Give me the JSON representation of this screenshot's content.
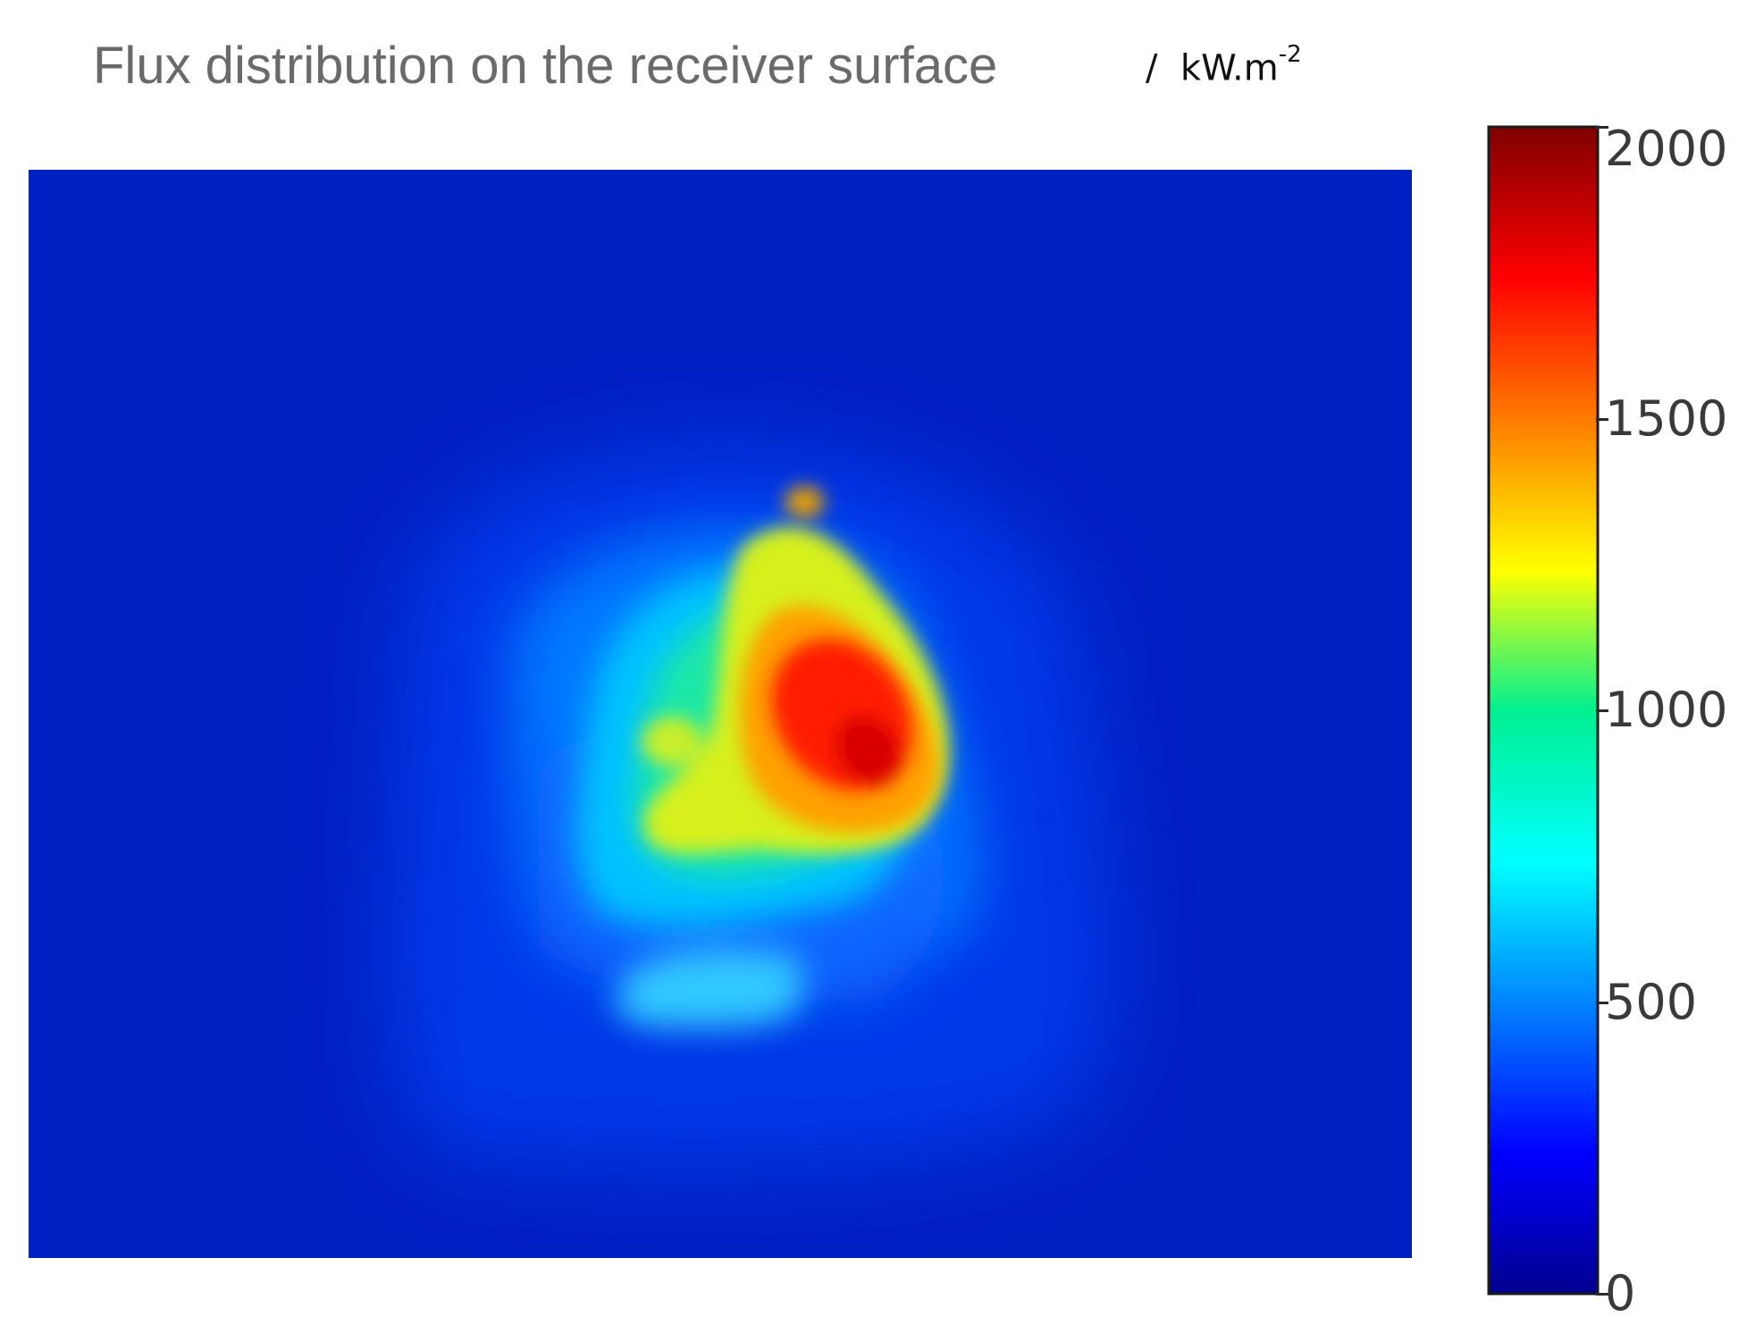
{
  "chart_data": {
    "type": "heatmap",
    "title": "Flux distribution on the receiver surface",
    "units_prefix": "/",
    "units_base": "kW.m",
    "units_exponent": "-2",
    "colorscale": "jet",
    "colorbar": {
      "range": [
        0,
        2000
      ],
      "ticks": [
        0,
        500,
        1000,
        1500,
        2000
      ],
      "tick_labels": [
        "0",
        "500",
        "1000",
        "1500",
        "2000"
      ]
    },
    "peak_value": 2000,
    "background_value": 60
  }
}
